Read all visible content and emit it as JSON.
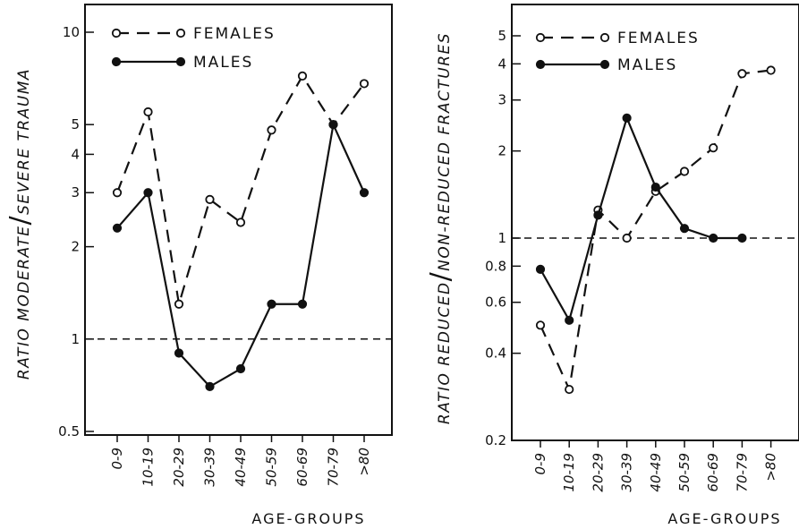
{
  "chart_data": [
    {
      "type": "line",
      "ylabel_left": "RATIO MODERATE",
      "ylabel_right": "SEVERE TRAUMA",
      "xlabel": "AGE-GROUPS",
      "y_scale": "log",
      "ylim": [
        0.5,
        12
      ],
      "yticks": [
        0.5,
        1,
        2,
        3,
        4,
        5,
        10
      ],
      "ytick_labels": [
        "0.5",
        "1",
        "2",
        "3",
        "4",
        "5",
        "10"
      ],
      "reference_line": 1,
      "grid": false,
      "legend_position": "top-left",
      "categories": [
        "0-9",
        "10-19",
        "20-29",
        "30-39",
        "40-49",
        "50-59",
        "60-69",
        "70-79",
        ">80"
      ],
      "series": [
        {
          "name": "FEMALES",
          "style": "dashed-open-circles",
          "values": [
            3.0,
            5.5,
            1.3,
            2.85,
            2.4,
            4.8,
            7.2,
            5.0,
            6.8
          ]
        },
        {
          "name": "MALES",
          "style": "solid-filled-circles",
          "values": [
            2.3,
            3.0,
            0.9,
            0.7,
            0.8,
            1.3,
            1.3,
            5.0,
            3.0
          ]
        }
      ]
    },
    {
      "type": "line",
      "ylabel_left": "RATIO REDUCED",
      "ylabel_right": "NON-REDUCED FRACTURES",
      "xlabel": "AGE-GROUPS",
      "y_scale": "log",
      "ylim": [
        0.2,
        6
      ],
      "yticks": [
        0.2,
        0.4,
        0.6,
        0.8,
        1,
        2,
        3,
        4,
        5
      ],
      "ytick_labels": [
        "0.2",
        "0.4",
        "0.6",
        "0.8",
        "1",
        "2",
        "3",
        "4",
        "5"
      ],
      "reference_line": 1,
      "grid": false,
      "legend_position": "top-left",
      "categories": [
        "0-9",
        "10-19",
        "20-29",
        "30-39",
        "40-49",
        "50-59",
        "60-69",
        "70-79",
        ">80"
      ],
      "series": [
        {
          "name": "FEMALES",
          "style": "dashed-open-circles",
          "values": [
            0.5,
            0.3,
            1.25,
            1.0,
            1.45,
            1.7,
            2.05,
            3.7,
            3.8
          ]
        },
        {
          "name": "MALES",
          "style": "solid-filled-circles",
          "values": [
            0.78,
            0.52,
            1.2,
            2.6,
            1.5,
            1.08,
            1.0,
            1.0,
            null
          ]
        }
      ]
    }
  ]
}
